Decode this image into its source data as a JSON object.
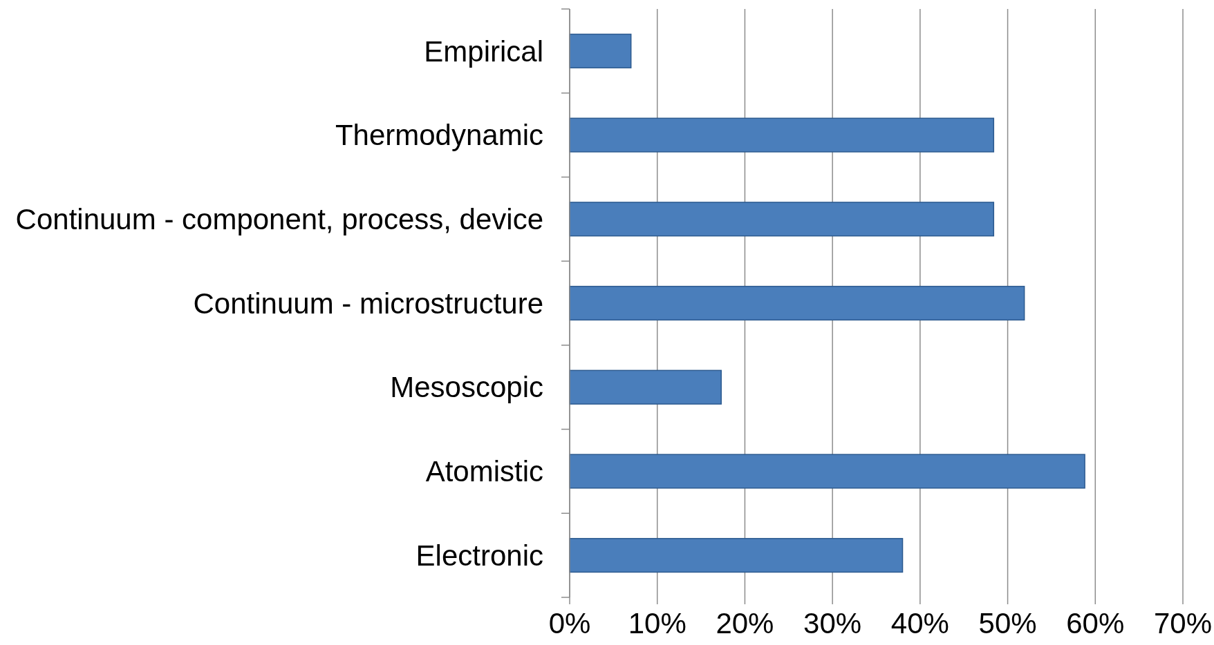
{
  "chart_data": {
    "type": "bar",
    "orientation": "horizontal",
    "categories": [
      "Empirical",
      "Thermodynamic",
      "Continuum - component, process, device",
      "Continuum - microstructure",
      "Mesoscopic",
      "Atomistic",
      "Electronic"
    ],
    "values": [
      7,
      48.4,
      48.4,
      51.9,
      17.3,
      58.8,
      38
    ],
    "color": "#4a7ebb",
    "xlim": [
      0,
      70
    ],
    "xticks": [
      {
        "value": 0,
        "label": "0%"
      },
      {
        "value": 10,
        "label": "10%"
      },
      {
        "value": 20,
        "label": "20%"
      },
      {
        "value": 30,
        "label": "30%"
      },
      {
        "value": 40,
        "label": "40%"
      },
      {
        "value": 50,
        "label": "50%"
      },
      {
        "value": 60,
        "label": "60%"
      },
      {
        "value": 70,
        "label": "70%"
      }
    ],
    "grid": "x"
  }
}
